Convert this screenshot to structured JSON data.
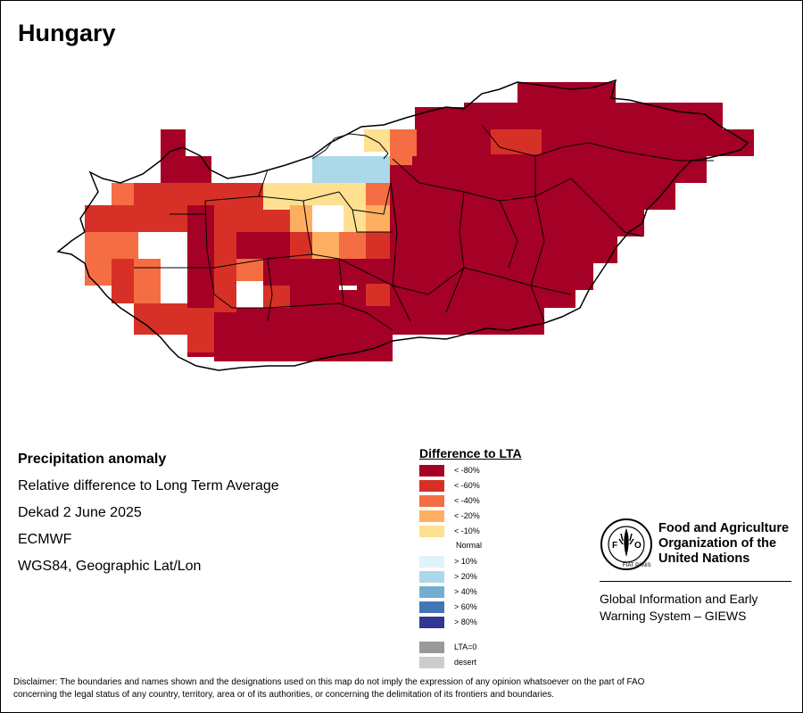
{
  "title": "Hungary",
  "info": {
    "heading": "Precipitation anomaly",
    "line1": "Relative difference to Long Term Average",
    "line2": "Dekad 2 June 2025",
    "line3": "ECMWF",
    "line4": "WGS84, Geographic Lat/Lon"
  },
  "legend": {
    "title": "Difference to LTA",
    "normal_label": "Normal",
    "items": [
      {
        "label": "< -80%",
        "color": "#a50026"
      },
      {
        "label": "< -60%",
        "color": "#d73027"
      },
      {
        "label": "< -40%",
        "color": "#f46d43"
      },
      {
        "label": "< -20%",
        "color": "#fdae61"
      },
      {
        "label": "< -10%",
        "color": "#fee090"
      },
      {
        "label": "> 10%",
        "color": "#e0f3f8"
      },
      {
        "label": "> 20%",
        "color": "#abd9e9"
      },
      {
        "label": "> 40%",
        "color": "#74add1"
      },
      {
        "label": "> 60%",
        "color": "#4575b4"
      },
      {
        "label": "> 80%",
        "color": "#313695"
      },
      {
        "label": "LTA=0",
        "color": "#999999"
      },
      {
        "label": "desert",
        "color": "#cccccc"
      }
    ]
  },
  "organization": {
    "name_line1": "Food and Agriculture",
    "name_line2": "Organization of the",
    "name_line3": "United Nations",
    "system_line1": "Global Information and Early",
    "system_line2": "Warning System – GIEWS"
  },
  "disclaimer_line1": "Disclaimer: The boundaries and names shown and the designations used on this map do not imply the expression of any opinion whatsoever on the part of FAO",
  "disclaimer_line2": "concerning the legal status of any country, territory, area or of its authorities, or concerning the delimitation of its frontiers and boundaries."
}
